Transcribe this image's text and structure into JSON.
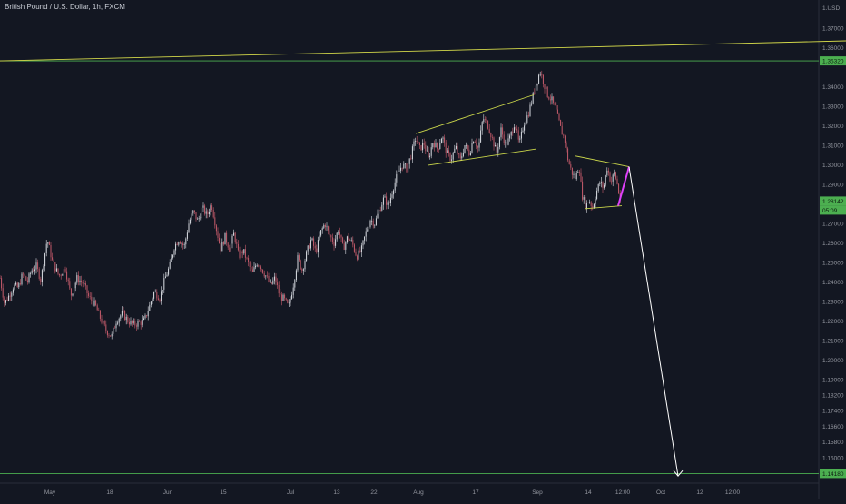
{
  "header": {
    "title": "British Pound / U.S. Dollar, 1h, FXCM",
    "currency": "USD"
  },
  "colors": {
    "background": "#131722",
    "axis_text": "#9598a1",
    "candle_up": "#d8dbe2",
    "candle_down": "#c45a6a",
    "channel_line": "#c8d44a",
    "resistance_line": "#d4d94a",
    "horizontal_level": "#4caf50",
    "level_label_bg": "#4caf50",
    "projection_arrow": "#ffffff",
    "magenta_leg": "#e040fb"
  },
  "chart_data": {
    "type": "candlestick",
    "title": "British Pound / U.S. Dollar, 1h, FXCM",
    "grid": false,
    "x": {
      "tick_labels": [
        "May",
        "18",
        "Jun",
        "15",
        "Jul",
        "13",
        "22",
        "Aug",
        "17",
        "Sep",
        "14",
        "12:00",
        "Oct",
        "12",
        "12:00"
      ],
      "range": [
        "Apr 23",
        "Oct 19"
      ]
    },
    "y": {
      "range": [
        1.1385,
        1.3805
      ],
      "tick_labels": [
        "1.37000",
        "1.36000",
        "1.34000",
        "1.33000",
        "1.32000",
        "1.31000",
        "1.30000",
        "1.29000",
        "1.27000",
        "1.26000",
        "1.25000",
        "1.24000",
        "1.23000",
        "1.22000",
        "1.21000",
        "1.20000",
        "1.19000",
        "1.18200",
        "1.17400",
        "1.16600",
        "1.15800",
        "1.15000",
        "1.14200"
      ],
      "tick_values": [
        1.37,
        1.36,
        1.34,
        1.33,
        1.32,
        1.31,
        1.3,
        1.29,
        1.27,
        1.26,
        1.25,
        1.24,
        1.23,
        1.22,
        1.21,
        1.2,
        1.19,
        1.182,
        1.174,
        1.166,
        1.158,
        1.15,
        1.142
      ],
      "top_label": "1.USD"
    },
    "price_path": [
      [
        0,
        1.242
      ],
      [
        5,
        1.229
      ],
      [
        10,
        1.233
      ],
      [
        15,
        1.238
      ],
      [
        20,
        1.237
      ],
      [
        25,
        1.244
      ],
      [
        30,
        1.24
      ],
      [
        35,
        1.246
      ],
      [
        40,
        1.248
      ],
      [
        45,
        1.241
      ],
      [
        52,
        1.262
      ],
      [
        58,
        1.25
      ],
      [
        65,
        1.243
      ],
      [
        72,
        1.247
      ],
      [
        78,
        1.233
      ],
      [
        85,
        1.242
      ],
      [
        92,
        1.239
      ],
      [
        98,
        1.232
      ],
      [
        105,
        1.228
      ],
      [
        110,
        1.222
      ],
      [
        117,
        1.215
      ],
      [
        123,
        1.212
      ],
      [
        128,
        1.22
      ],
      [
        135,
        1.224
      ],
      [
        141,
        1.22
      ],
      [
        147,
        1.218
      ],
      [
        153,
        1.219
      ],
      [
        159,
        1.22
      ],
      [
        165,
        1.228
      ],
      [
        170,
        1.235
      ],
      [
        176,
        1.232
      ],
      [
        182,
        1.242
      ],
      [
        187,
        1.248
      ],
      [
        192,
        1.258
      ],
      [
        197,
        1.262
      ],
      [
        203,
        1.258
      ],
      [
        208,
        1.27
      ],
      [
        213,
        1.276
      ],
      [
        218,
        1.271
      ],
      [
        223,
        1.278
      ],
      [
        228,
        1.274
      ],
      [
        233,
        1.28
      ],
      [
        238,
        1.268
      ],
      [
        243,
        1.257
      ],
      [
        248,
        1.263
      ],
      [
        253,
        1.257
      ],
      [
        258,
        1.265
      ],
      [
        263,
        1.253
      ],
      [
        268,
        1.256
      ],
      [
        273,
        1.25
      ],
      [
        278,
        1.244
      ],
      [
        283,
        1.25
      ],
      [
        288,
        1.247
      ],
      [
        293,
        1.243
      ],
      [
        298,
        1.238
      ],
      [
        303,
        1.242
      ],
      [
        308,
        1.233
      ],
      [
        313,
        1.231
      ],
      [
        318,
        1.227
      ],
      [
        323,
        1.238
      ],
      [
        328,
        1.252
      ],
      [
        333,
        1.246
      ],
      [
        338,
        1.255
      ],
      [
        343,
        1.262
      ],
      [
        348,
        1.255
      ],
      [
        353,
        1.265
      ],
      [
        358,
        1.27
      ],
      [
        363,
        1.264
      ],
      [
        368,
        1.26
      ],
      [
        373,
        1.267
      ],
      [
        378,
        1.257
      ],
      [
        383,
        1.263
      ],
      [
        388,
        1.26
      ],
      [
        393,
        1.253
      ],
      [
        398,
        1.256
      ],
      [
        403,
        1.265
      ],
      [
        408,
        1.272
      ],
      [
        413,
        1.27
      ],
      [
        418,
        1.277
      ],
      [
        423,
        1.283
      ],
      [
        428,
        1.279
      ],
      [
        433,
        1.288
      ],
      [
        438,
        1.295
      ],
      [
        443,
        1.3
      ],
      [
        448,
        1.298
      ],
      [
        453,
        1.305
      ],
      [
        458,
        1.314
      ],
      [
        462,
        1.308
      ],
      [
        467,
        1.311
      ],
      [
        472,
        1.303
      ],
      [
        477,
        1.312
      ],
      [
        482,
        1.308
      ],
      [
        487,
        1.315
      ],
      [
        492,
        1.306
      ],
      [
        497,
        1.303
      ],
      [
        502,
        1.309
      ],
      [
        507,
        1.302
      ],
      [
        512,
        1.31
      ],
      [
        517,
        1.306
      ],
      [
        522,
        1.314
      ],
      [
        527,
        1.308
      ],
      [
        532,
        1.324
      ],
      [
        537,
        1.321
      ],
      [
        542,
        1.314
      ],
      [
        547,
        1.306
      ],
      [
        552,
        1.318
      ],
      [
        557,
        1.31
      ],
      [
        562,
        1.314
      ],
      [
        567,
        1.322
      ],
      [
        572,
        1.31
      ],
      [
        577,
        1.321
      ],
      [
        582,
        1.326
      ],
      [
        587,
        1.335
      ],
      [
        591,
        1.342
      ],
      [
        595,
        1.348
      ],
      [
        599,
        1.342
      ],
      [
        603,
        1.336
      ],
      [
        608,
        1.333
      ],
      [
        613,
        1.327
      ],
      [
        618,
        1.318
      ],
      [
        622,
        1.313
      ],
      [
        626,
        1.302
      ],
      [
        630,
        1.296
      ],
      [
        634,
        1.293
      ],
      [
        638,
        1.3
      ],
      [
        641,
        1.285
      ],
      [
        645,
        1.279
      ],
      [
        649,
        1.282
      ],
      [
        653,
        1.278
      ],
      [
        657,
        1.286
      ],
      [
        661,
        1.291
      ],
      [
        665,
        1.288
      ],
      [
        669,
        1.299
      ],
      [
        673,
        1.291
      ],
      [
        677,
        1.296
      ],
      [
        681,
        1.288
      ],
      [
        684,
        1.279
      ]
    ],
    "annotations": {
      "horizontal_levels": [
        {
          "label": "1.35320",
          "price": 1.3532
        },
        {
          "label": "1.14180",
          "price": 1.1418
        }
      ],
      "current_price": {
        "label": "1.28142",
        "price": 1.28142,
        "timer": "05:09"
      },
      "resistance_trendline": {
        "from": [
          0,
          1.3532
        ],
        "to": [
          932,
          1.3635
        ]
      },
      "rising_channel": {
        "upper": [
          [
            458,
            1.316
          ],
          [
            588,
            1.3358
          ]
        ],
        "lower": [
          [
            471,
            1.2997
          ],
          [
            590,
            1.308
          ]
        ]
      },
      "triangle_pattern": {
        "upper": [
          [
            634,
            1.3045
          ],
          [
            693,
            1.299
          ]
        ],
        "lower": [
          [
            645,
            1.2775
          ],
          [
            685,
            1.279
          ]
        ]
      },
      "magenta_leg": {
        "from": [
          681,
          1.279
        ],
        "to": [
          693,
          1.299
        ]
      },
      "projection_arrow": {
        "from": [
          693,
          1.299
        ],
        "to": [
          747,
          1.1405
        ]
      }
    }
  }
}
